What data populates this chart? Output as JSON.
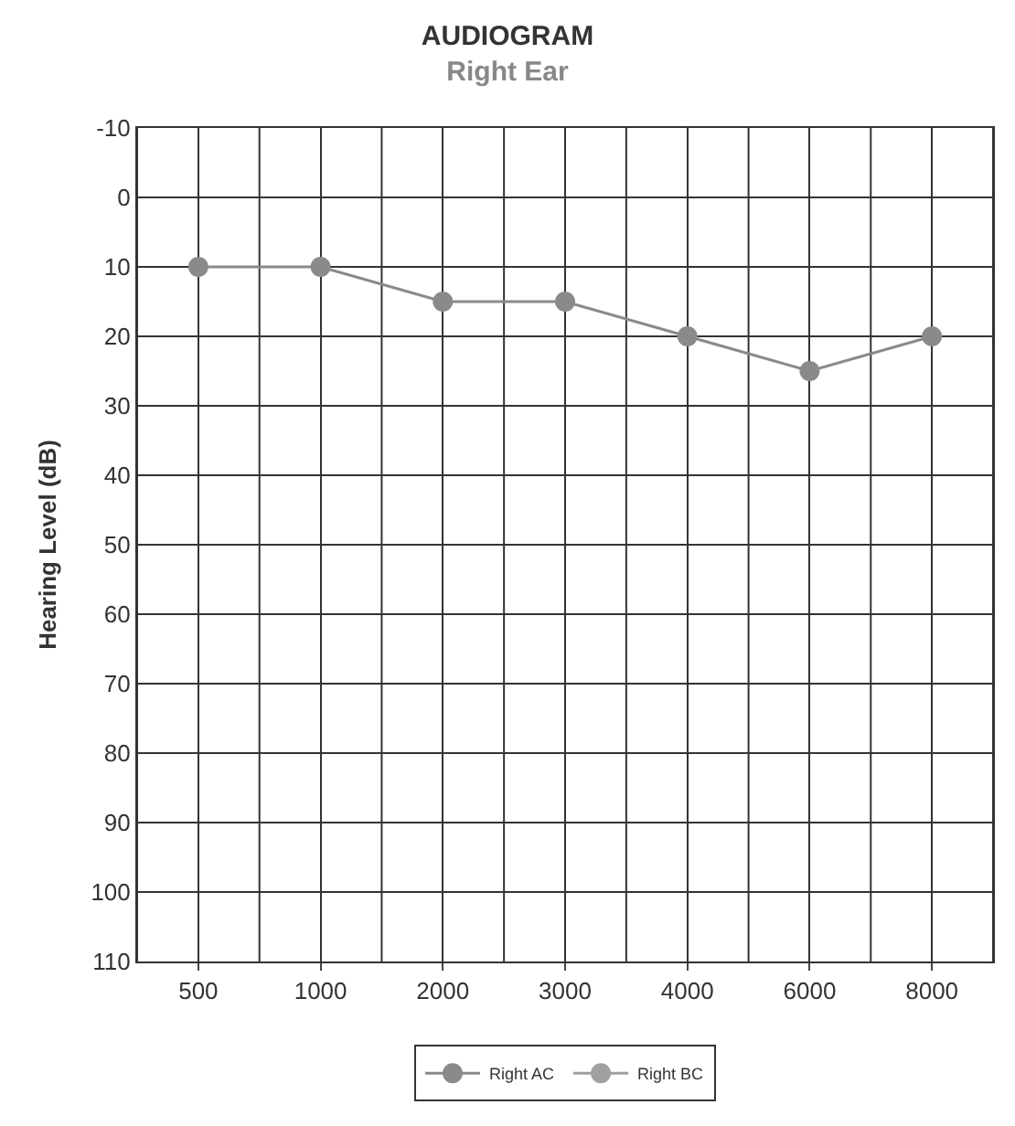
{
  "chart_data": {
    "type": "line",
    "title": "AUDIOGRAM",
    "subtitle": "Right Ear",
    "ylabel": "Hearing Level (dB)",
    "categories": [
      "500",
      "1000",
      "2000",
      "3000",
      "4000",
      "6000",
      "8000"
    ],
    "series": [
      {
        "name": "Right AC",
        "color": "#8a8a8a",
        "values": [
          10,
          10,
          15,
          15,
          20,
          25,
          20
        ]
      },
      {
        "name": "Right BC",
        "color": "#a0a0a0",
        "values": [
          null,
          null,
          null,
          null,
          null,
          null,
          null
        ]
      }
    ],
    "ylim": [
      110,
      -10
    ],
    "yticks": [
      -10,
      0,
      10,
      20,
      30,
      40,
      50,
      60,
      70,
      80,
      90,
      100,
      110
    ],
    "grid": true,
    "legend": "bottom",
    "marker": "circle",
    "line_style": "solid"
  }
}
